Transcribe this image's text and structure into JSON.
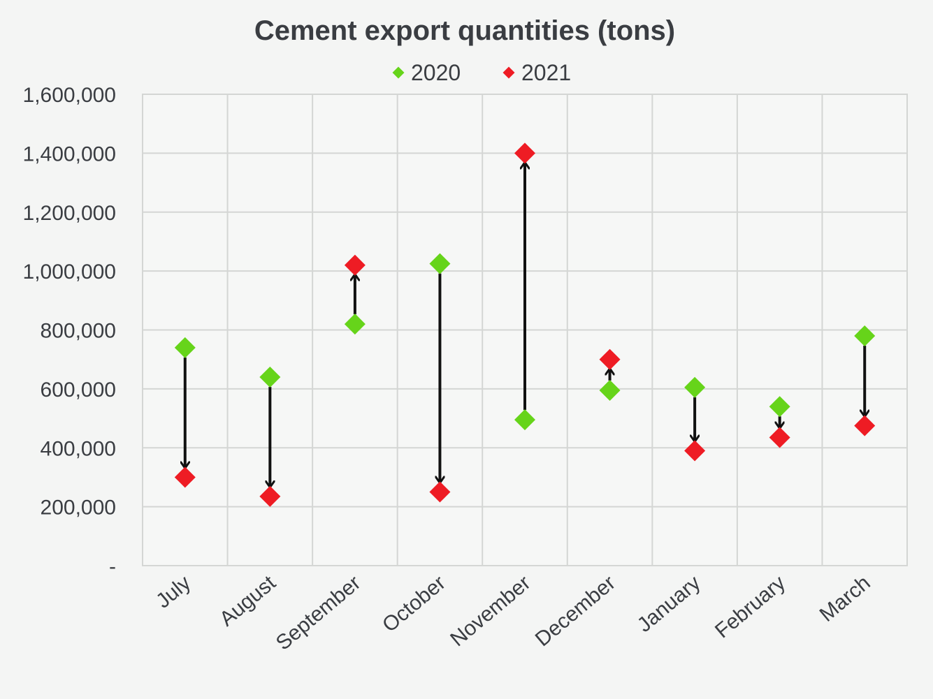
{
  "chart_data": {
    "type": "scatter",
    "title": "Cement export quantities (tons)",
    "categories": [
      "July",
      "August",
      "September",
      "October",
      "November",
      "December",
      "January",
      "February",
      "March"
    ],
    "series": [
      {
        "name": "2020",
        "color": "#66d41a",
        "values": [
          740000,
          640000,
          820000,
          1025000,
          495000,
          595000,
          605000,
          540000,
          780000
        ]
      },
      {
        "name": "2021",
        "color": "#ee1c24",
        "values": [
          300000,
          235000,
          1020000,
          250000,
          1400000,
          700000,
          390000,
          435000,
          475000
        ]
      }
    ],
    "y_ticks": [
      "-",
      "200,000",
      "400,000",
      "600,000",
      "800,000",
      "1,000,000",
      "1,200,000",
      "1,400,000",
      "1,600,000"
    ],
    "ylim": [
      0,
      1600000
    ],
    "arrows": "from 2020 value to 2021 value",
    "grid": true,
    "legend_position": "top"
  }
}
